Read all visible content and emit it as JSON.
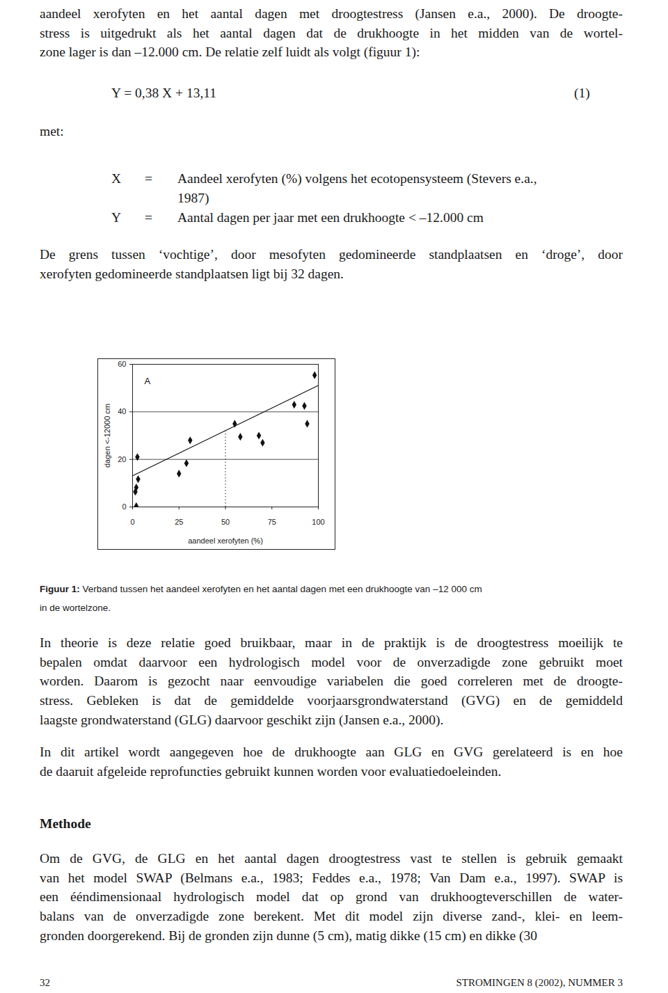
{
  "paragraph_1": [
    "aandeel xerofyten en het aantal dagen met droogtestress (Jansen e.a., 2000). De droogte-",
    "stress is uitgedrukt als het aantal dagen dat de drukhoogte in het midden van de wortel-",
    "zone lager is dan –12.000 cm. De relatie zelf luidt als volgt (figuur 1):"
  ],
  "equation": {
    "text": "Y = 0,38 X + 13,11",
    "number": "(1)"
  },
  "with": "met:",
  "definitions": [
    {
      "symbol": "X",
      "sign": "=",
      "lines": [
        "Aandeel xerofyten (%) volgens het ecotopensysteem (Stevers e.a.,",
        "1987)"
      ]
    },
    {
      "symbol": "Y",
      "sign": "=",
      "lines": [
        "Aantal dagen per jaar met een drukhoogte < –12.000 cm"
      ]
    }
  ],
  "paragraph_2": [
    "De grens tussen ‘vochtige’, door mesofyten gedomineerde standplaatsen en ‘droge’, door",
    "xerofyten gedomineerde standplaatsen ligt bij 32 dagen."
  ],
  "chart_data": {
    "type": "scatter",
    "x_label": "aandeel xerofyten (%)",
    "y_label": "dagen <-12000 cm",
    "xlim": [
      0,
      100
    ],
    "ylim": [
      0,
      60
    ],
    "xticks": [
      0,
      25,
      50,
      75,
      100
    ],
    "yticks": [
      0,
      20,
      40,
      60
    ],
    "grid": "y",
    "annotations": [
      {
        "text": "A",
        "x": 8,
        "y": 53
      }
    ],
    "series": [
      {
        "type": "scatter",
        "marker": "diamond",
        "color": "#111111",
        "x": [
          98,
          87,
          92.5,
          94,
          55,
          58,
          68,
          70,
          31,
          2.6,
          29,
          25,
          3,
          2,
          1.5,
          2
        ],
        "values": [
          55.4,
          43,
          42.5,
          35,
          35,
          29.5,
          30,
          27,
          28,
          21,
          18.4,
          14,
          11.7,
          8.2,
          6.4,
          0.3
        ]
      },
      {
        "type": "line",
        "color": "#111111",
        "x": [
          0,
          100
        ],
        "values": [
          13.11,
          51.11
        ]
      }
    ],
    "reference": {
      "x": 50,
      "y": 32,
      "line_style": "dotted"
    }
  },
  "caption": {
    "label": "Figuur 1:",
    "lines": [
      "Verband tussen het aandeel xerofyten en het aantal dagen met een drukhoogte van –12 000 cm",
      "in de wortelzone."
    ]
  },
  "paragraph_3": [
    "In theorie is deze relatie goed bruikbaar, maar in de praktijk is de droogtestress moeilijk te",
    "bepalen omdat daarvoor een hydrologisch model voor de onverzadigde zone gebruikt moet",
    "worden. Daarom is gezocht naar eenvoudige variabelen die goed correleren met de droogte-",
    "stress. Gebleken is dat de gemiddelde voorjaarsgrondwaterstand (GVG) en de gemiddeld",
    "laagste grondwaterstand (GLG) daarvoor geschikt zijn (Jansen e.a., 2000)."
  ],
  "paragraph_4": [
    "In dit artikel wordt aangegeven hoe de drukhoogte aan GLG en GVG gerelateerd is en hoe",
    "de daaruit afgeleide reprofuncties gebruikt kunnen worden voor evaluatiedoeleinden."
  ],
  "heading": "Methode",
  "paragraph_5": [
    "Om de GVG, de GLG en het aantal dagen droogtestress vast te stellen is gebruik gemaakt",
    "van het model SWAP (Belmans e.a., 1983; Feddes e.a., 1978; Van Dam e.a., 1997). SWAP is",
    "een ééndimensionaal hydrologisch model dat op grond van drukhoogteverschillen de water-",
    "balans van de onverzadigde zone berekent. Met dit model zijn diverse zand-, klei- en leem-",
    "gronden doorgerekend. Bij de gronden zijn dunne (5 cm), matig dikke (15 cm) en dikke (30"
  ],
  "footer": {
    "page": "32",
    "journal": "STROMINGEN 8 (2002), NUMMER 3"
  }
}
